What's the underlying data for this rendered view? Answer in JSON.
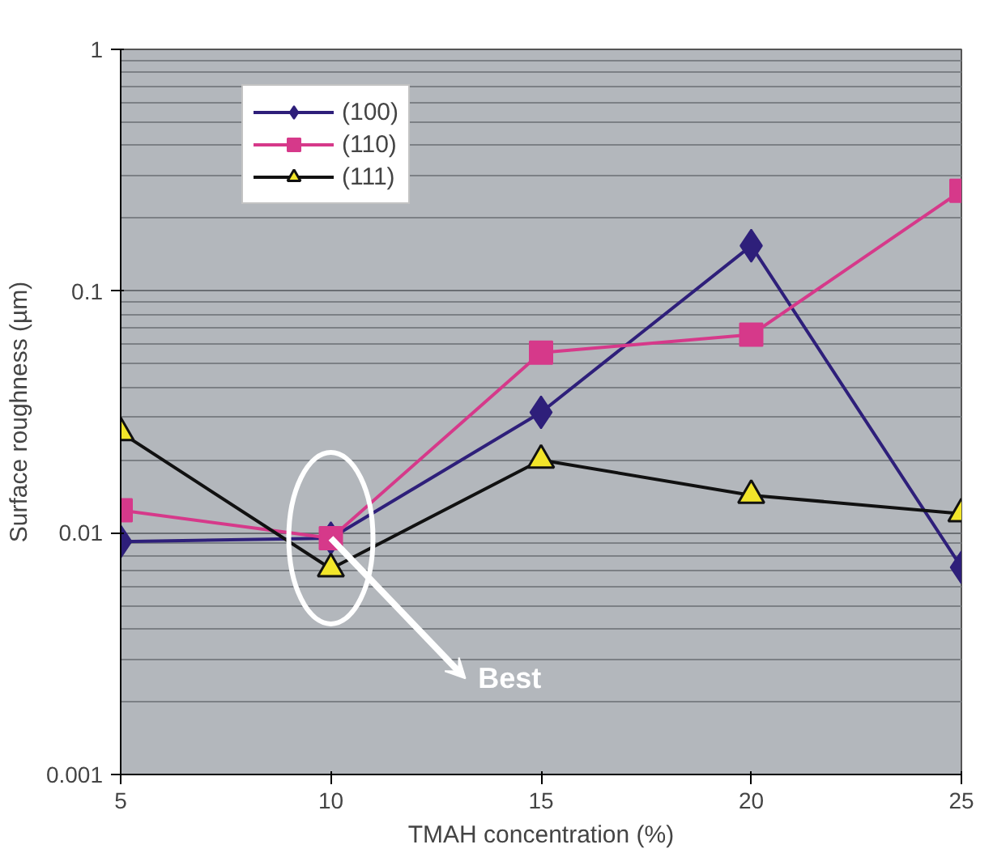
{
  "chart_data": {
    "type": "line",
    "xlabel": "TMAH concentration (%)",
    "ylabel": "Surface roughness (µm)",
    "x": [
      5,
      10,
      15,
      20,
      25
    ],
    "series": [
      {
        "name": "(100)",
        "color": "#2e1f7a",
        "marker": "diamond",
        "values": [
          0.0092,
          0.0095,
          0.0315,
          0.154,
          0.0072
        ]
      },
      {
        "name": "(110)",
        "color": "#d6398a",
        "marker": "square",
        "values": [
          0.0124,
          0.0095,
          0.0556,
          0.066,
          0.26
        ]
      },
      {
        "name": "(111)",
        "color": "#111111",
        "marker": "triangle",
        "values": [
          0.026,
          0.0071,
          0.02,
          0.0143,
          0.012
        ]
      }
    ],
    "log": "y",
    "xlim": [
      5,
      25
    ],
    "ylim": [
      0.001,
      1
    ],
    "xticks": [
      5,
      10,
      15,
      20,
      25
    ],
    "yticks": [
      0.001,
      0.01,
      0.1,
      1
    ],
    "grid": "y",
    "legend": "top left",
    "line_style": "solid",
    "annotations": [
      {
        "text": "Best",
        "x": 10,
        "y": 0.0095
      }
    ]
  }
}
